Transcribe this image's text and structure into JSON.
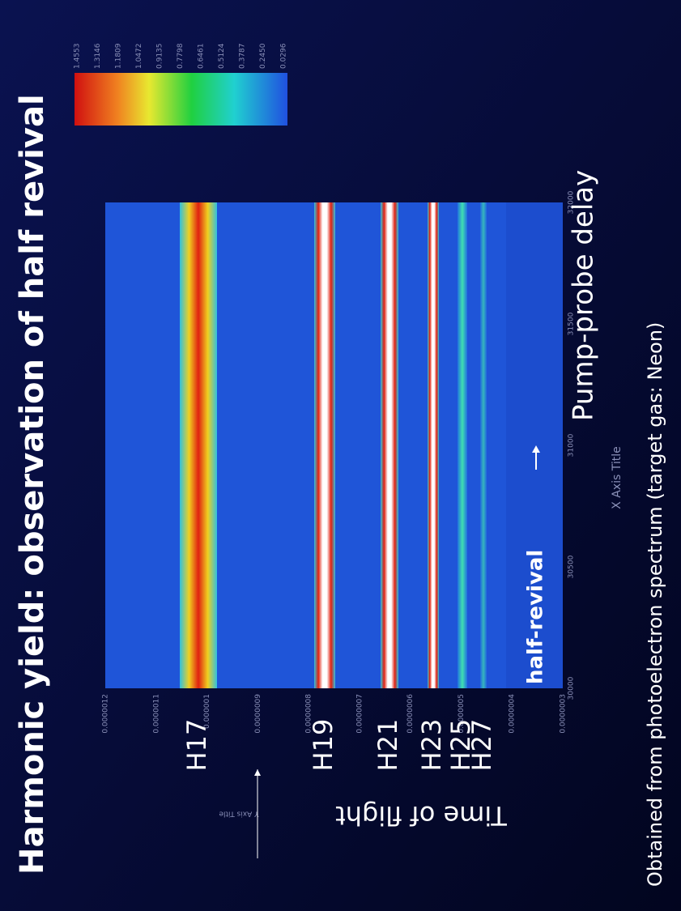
{
  "slide": {
    "title": "Harmonic yield:  observation of half revival",
    "y_axis_title": "Time of flight",
    "y_axis_placeholder": "Y Axis Title",
    "x_axis_title": "Pump-probe delay",
    "x_axis_placeholder": "X Axis Title",
    "annotation": "half-revival",
    "footnote": "Obtained from photoelectron spectrum (target gas: Neon)",
    "harmonics": [
      "H17",
      "H19",
      "H21",
      "H23",
      "H25",
      "H27"
    ],
    "y_tick_labels": [
      "0.0000012",
      "0.0000011",
      "0.000001",
      "0.0000009",
      "0.0000008",
      "0.0000007",
      "0.0000006",
      "0.0000005",
      "0.0000004",
      "0.0000003"
    ],
    "x_tick_labels": [
      "30000",
      "30500",
      "31000",
      "31500",
      "32000"
    ],
    "colorbar_labels": [
      "1.4553",
      "1.3146",
      "1.1809",
      "1.0472",
      "0.9135",
      "0.7798",
      "0.6461",
      "0.5124",
      "0.3787",
      "0.2450",
      "0.0296"
    ]
  }
}
